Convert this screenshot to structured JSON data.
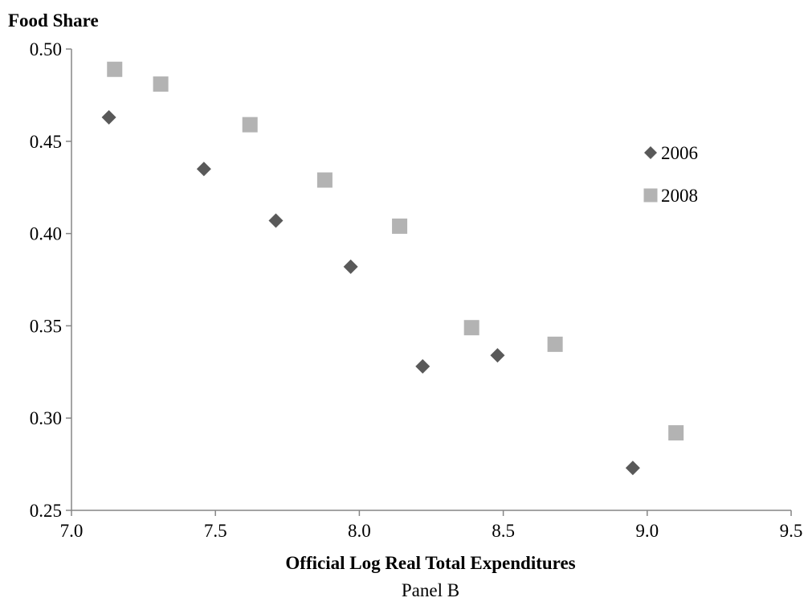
{
  "chart_data": {
    "type": "scatter",
    "ylabel": "Food Share",
    "xlabel": "Official Log Real Total Expenditures",
    "caption": "Panel B",
    "xlim": [
      7.0,
      9.5
    ],
    "ylim": [
      0.25,
      0.5
    ],
    "x_ticks": [
      "7.0",
      "7.5",
      "8.0",
      "8.5",
      "9.0",
      "9.5"
    ],
    "y_ticks": [
      "0.50",
      "0.45",
      "0.40",
      "0.35",
      "0.30",
      "0.25"
    ],
    "grid": false,
    "legend_position": "right",
    "series": [
      {
        "name": "2006",
        "marker": "diamond",
        "color": "#595959",
        "points": [
          {
            "x": 7.13,
            "y": 0.463
          },
          {
            "x": 7.46,
            "y": 0.435
          },
          {
            "x": 7.71,
            "y": 0.407
          },
          {
            "x": 7.97,
            "y": 0.382
          },
          {
            "x": 8.22,
            "y": 0.328
          },
          {
            "x": 8.48,
            "y": 0.334
          },
          {
            "x": 8.95,
            "y": 0.273
          }
        ]
      },
      {
        "name": "2008",
        "marker": "square",
        "color": "#b3b3b3",
        "points": [
          {
            "x": 7.15,
            "y": 0.489
          },
          {
            "x": 7.31,
            "y": 0.481
          },
          {
            "x": 7.62,
            "y": 0.459
          },
          {
            "x": 7.88,
            "y": 0.429
          },
          {
            "x": 8.14,
            "y": 0.404
          },
          {
            "x": 8.39,
            "y": 0.349
          },
          {
            "x": 8.68,
            "y": 0.34
          },
          {
            "x": 9.1,
            "y": 0.292
          }
        ]
      }
    ]
  }
}
